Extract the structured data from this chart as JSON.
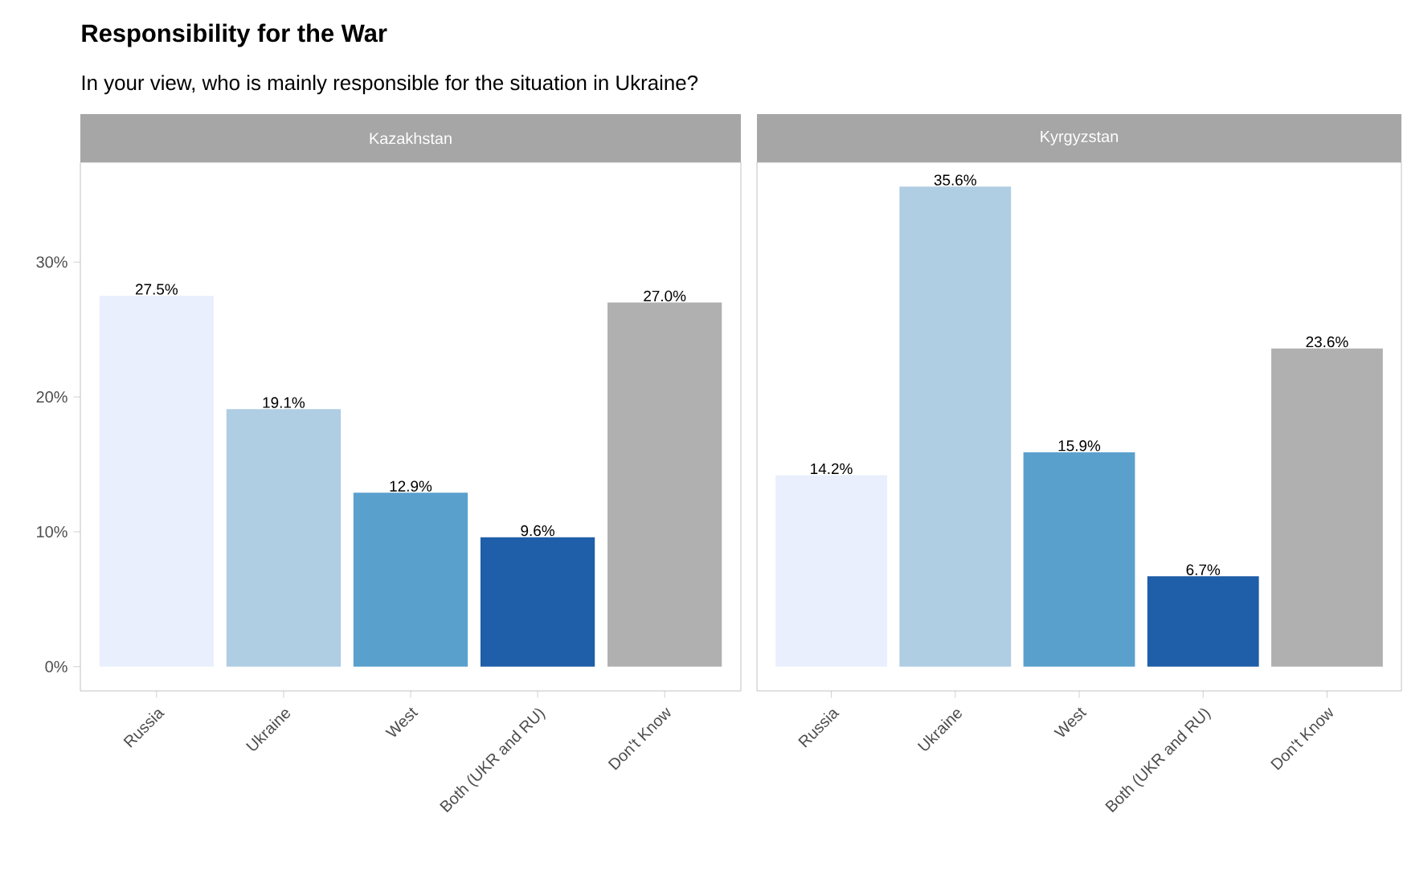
{
  "chart_data": [
    {
      "type": "bar",
      "title": "Responsibility for the War",
      "subtitle": "In your view, who is mainly responsible for the situation in Ukraine?",
      "annotations": [
        "Kazakhstan"
      ],
      "categories": [
        "Russia",
        "Ukraine",
        "West",
        "Both (UKR and RU)",
        "Don't Know"
      ],
      "values": [
        27.5,
        19.1,
        12.9,
        9.6,
        27.0
      ],
      "value_labels": [
        "27.5%",
        "19.1%",
        "12.9%",
        "9.6%",
        "27.0%"
      ],
      "colors": [
        "#e9effc",
        "#afcde3",
        "#5aa0cd",
        "#1f5ea8",
        "#b0b0b0"
      ],
      "ylim": [
        -1.8,
        37.4
      ],
      "yticks": [
        {
          "value": 0,
          "label": "0%"
        },
        {
          "value": 10,
          "label": "10%"
        },
        {
          "value": 20,
          "label": "20%"
        },
        {
          "value": 30,
          "label": "30%"
        }
      ]
    },
    {
      "type": "bar",
      "annotations": [
        "Kyrgyzstan"
      ],
      "categories": [
        "Russia",
        "Ukraine",
        "West",
        "Both (UKR and RU)",
        "Don't Know"
      ],
      "values": [
        14.2,
        35.6,
        15.9,
        6.7,
        23.6
      ],
      "value_labels": [
        "14.2%",
        "35.6%",
        "15.9%",
        "6.7%",
        "23.6%"
      ],
      "colors": [
        "#e9effc",
        "#afcde3",
        "#5aa0cd",
        "#1f5ea8",
        "#b0b0b0"
      ],
      "ylim": [
        -1.8,
        37.4
      ],
      "tick_labels": "x"
    }
  ]
}
